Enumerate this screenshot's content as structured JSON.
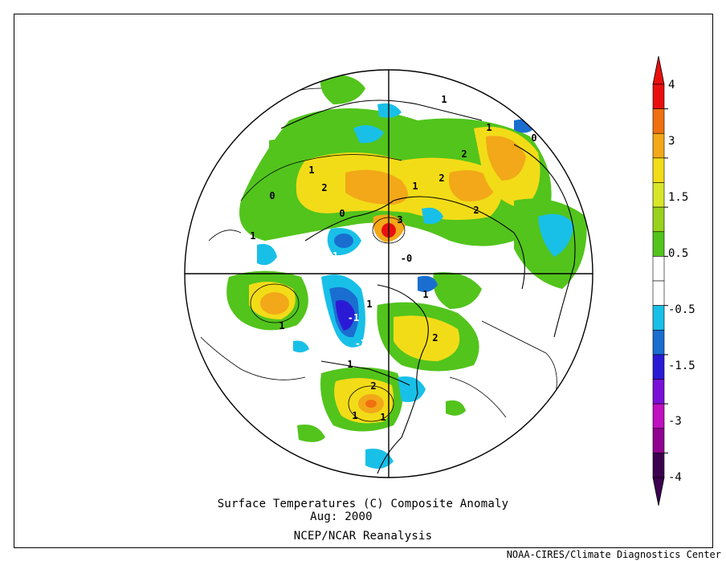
{
  "caption": {
    "title_line": "Surface Temperatures (C)   Composite Anomaly",
    "date_line": "Aug: 2000",
    "source_line": "NCEP/NCAR Reanalysis"
  },
  "credit": "NOAA-CIRES/Climate Diagnostics Center",
  "colorbar": {
    "labels": [
      "4",
      "3",
      "1.5",
      "0.5",
      "-0.5",
      "-1.5",
      "-3",
      "-4"
    ],
    "colors": [
      "#e8100f",
      "#f07010",
      "#f2a818",
      "#f2dc18",
      "#d8e62a",
      "#98d21c",
      "#52c41c",
      "#ffffff",
      "#ffffff",
      "#18c0e8",
      "#1a6ed0",
      "#2a1ad6",
      "#7a10d8",
      "#c010c0",
      "#900090",
      "#3c0050"
    ]
  },
  "map_labels": [
    "1",
    "1",
    "2",
    "2",
    "1",
    "1",
    "-1",
    "-1",
    "-2",
    "2",
    "2",
    "1",
    "1",
    "3",
    "1",
    "0",
    "-0",
    "1",
    "2",
    "2",
    "1",
    "0",
    "1",
    "0",
    "1"
  ],
  "colors": {
    "warm_light": "#52c41c",
    "warm_mid": "#f2dc18",
    "warm_high": "#f2a818",
    "warm_peak": "#e8100f",
    "cool_light": "#18c0e8",
    "cool_mid": "#1a6ed0",
    "cool_deep": "#2a1ad6",
    "cool_peak": "#7a10d8"
  }
}
